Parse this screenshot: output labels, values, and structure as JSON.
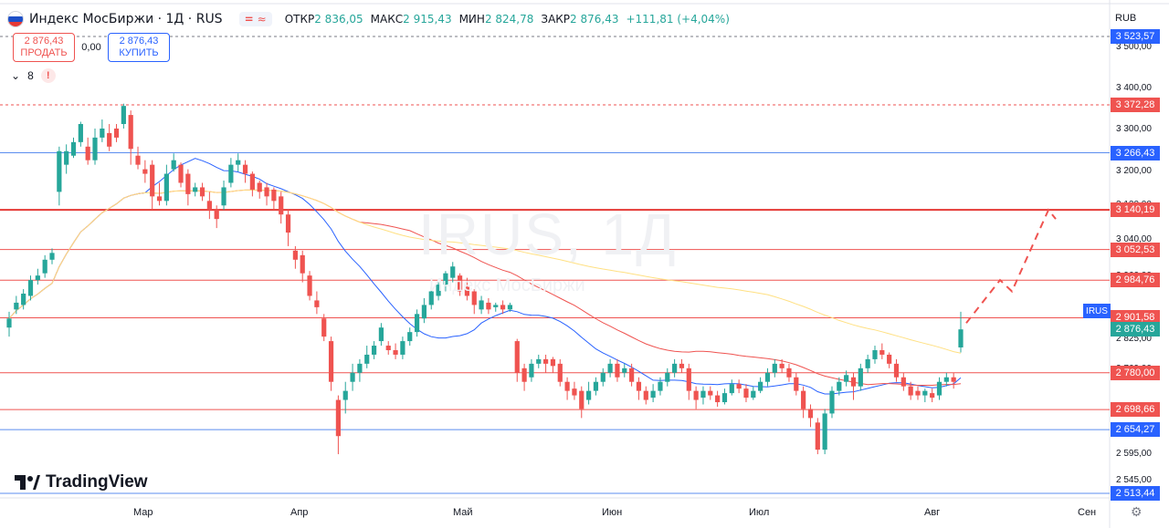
{
  "header": {
    "title": "Индекс МосБиржи · 1Д · RUS",
    "pill_icon_1": "=",
    "pill_icon_2": "≈",
    "ohlc": [
      {
        "k": "ОТКР",
        "v": "2 836,05"
      },
      {
        "k": "МАКС",
        "v": "2 915,43"
      },
      {
        "k": "МИН",
        "v": "2 824,78"
      },
      {
        "k": "ЗАКР",
        "v": "2 876,43"
      },
      {
        "k": "",
        "v": "+111,81 (+4,04%)"
      }
    ]
  },
  "trade": {
    "sell_price": "2 876,43",
    "sell_label": "ПРОДАТЬ",
    "spread": "0,00",
    "buy_price": "2 876,43",
    "buy_label": "КУПИТЬ"
  },
  "indicators": {
    "count": "8",
    "alert": "!"
  },
  "currency": "RUB",
  "watermark": {
    "symbol": "IRUS, 1Д",
    "name": "Индекс МосБиржи"
  },
  "brand": "TradingView",
  "symbol_tag": "IRUS",
  "colors": {
    "up": "#26a69a",
    "down": "#ef5350",
    "ma_blue": "#2962ff",
    "ma_red": "#ef5350",
    "ma_yellow": "#ffe082",
    "level_blue": "#5b8def",
    "level_red": "#ef5350"
  },
  "chart_data": {
    "type": "candlestick",
    "y_ticks": [
      "3 500,00",
      "3 400,00",
      "3 300,00",
      "3 200,00",
      "3 120,00",
      "3 040,00",
      "2 960,00",
      "2 825,00",
      "2 769,00",
      "2 595,00",
      "2 545,00"
    ],
    "x_ticks": [
      "Мар",
      "Апр",
      "Май",
      "Июн",
      "Июл",
      "Авг",
      "Сен"
    ],
    "price_labels": [
      {
        "value": "3 523,57",
        "color": "#2962ff"
      },
      {
        "value": "3 372,28",
        "color": "#ef5350"
      },
      {
        "value": "3 266,43",
        "color": "#2962ff"
      },
      {
        "value": "3 140,19",
        "color": "#ef5350"
      },
      {
        "value": "3 052,53",
        "color": "#ef5350"
      },
      {
        "value": "2 984,76",
        "color": "#ef5350"
      },
      {
        "value": "2 901,58",
        "color": "#ef5350"
      },
      {
        "value": "2 876,43",
        "color": "#26a69a"
      },
      {
        "value": "2 780,00",
        "color": "#ef5350"
      },
      {
        "value": "2 698,66",
        "color": "#ef5350"
      },
      {
        "value": "2 654,27",
        "color": "#2962ff"
      },
      {
        "value": "2 513,44",
        "color": "#2962ff"
      }
    ],
    "levels": [
      {
        "value": 3523.57,
        "style": "dashed",
        "color": "#787b86"
      },
      {
        "value": 3372.28,
        "style": "dashed",
        "color": "#ef5350"
      },
      {
        "value": 3266.43,
        "style": "solid",
        "color": "#5b8def"
      },
      {
        "value": 3140.19,
        "style": "solid-thick",
        "color": "#e53935"
      },
      {
        "value": 3052.53,
        "style": "solid",
        "color": "#ef5350"
      },
      {
        "value": 2984.76,
        "style": "solid",
        "color": "#ef5350"
      },
      {
        "value": 2901.58,
        "style": "solid",
        "color": "#ef5350"
      },
      {
        "value": 2780.0,
        "style": "solid",
        "color": "#ef5350"
      },
      {
        "value": 2698.66,
        "style": "solid",
        "color": "#ef5350"
      },
      {
        "value": 2654.27,
        "style": "solid",
        "color": "#5b8def"
      },
      {
        "value": 2513.44,
        "style": "solid",
        "color": "#5b8def"
      }
    ],
    "candles": [
      [
        2880,
        2900,
        2860,
        2915
      ],
      [
        2920,
        2935,
        2910,
        2950
      ],
      [
        2930,
        2955,
        2920,
        2965
      ],
      [
        2950,
        2985,
        2940,
        2995
      ],
      [
        2985,
        2995,
        2975,
        3010
      ],
      [
        3000,
        3030,
        2990,
        3040
      ],
      [
        3030,
        3045,
        3020,
        3055
      ],
      [
        3180,
        3270,
        3150,
        3280
      ],
      [
        3240,
        3270,
        3220,
        3285
      ],
      [
        3260,
        3290,
        3255,
        3300
      ],
      [
        3290,
        3330,
        3280,
        3335
      ],
      [
        3280,
        3250,
        3240,
        3300
      ],
      [
        3250,
        3300,
        3240,
        3320
      ],
      [
        3300,
        3320,
        3290,
        3340
      ],
      [
        3310,
        3280,
        3270,
        3330
      ],
      [
        3320,
        3300,
        3290,
        3330
      ],
      [
        3330,
        3370,
        3320,
        3375
      ],
      [
        3350,
        3275,
        3240,
        3360
      ],
      [
        3260,
        3240,
        3230,
        3280
      ],
      [
        3230,
        3220,
        3200,
        3250
      ],
      [
        3240,
        3170,
        3140,
        3250
      ],
      [
        3170,
        3160,
        3150,
        3200
      ],
      [
        3160,
        3220,
        3150,
        3240
      ],
      [
        3230,
        3250,
        3225,
        3265
      ],
      [
        3240,
        3200,
        3190,
        3245
      ],
      [
        3220,
        3175,
        3150,
        3230
      ],
      [
        3180,
        3190,
        3170,
        3200
      ],
      [
        3190,
        3170,
        3160,
        3200
      ],
      [
        3160,
        3140,
        3120,
        3180
      ],
      [
        3140,
        3120,
        3100,
        3150
      ],
      [
        3150,
        3190,
        3140,
        3205
      ],
      [
        3200,
        3240,
        3190,
        3255
      ],
      [
        3240,
        3250,
        3225,
        3265
      ],
      [
        3240,
        3220,
        3200,
        3250
      ],
      [
        3220,
        3185,
        3170,
        3225
      ],
      [
        3200,
        3180,
        3165,
        3205
      ],
      [
        3190,
        3170,
        3150,
        3200
      ],
      [
        3185,
        3160,
        3140,
        3190
      ],
      [
        3170,
        3130,
        3110,
        3180
      ],
      [
        3130,
        3090,
        3060,
        3140
      ],
      [
        3050,
        3030,
        3010,
        3060
      ],
      [
        3040,
        3000,
        2980,
        3050
      ],
      [
        2995,
        2950,
        2940,
        3005
      ],
      [
        2940,
        2925,
        2910,
        2960
      ],
      [
        2900,
        2860,
        2850,
        2910
      ],
      [
        2850,
        2760,
        2740,
        2860
      ],
      [
        2720,
        2640,
        2600,
        2730
      ],
      [
        2720,
        2740,
        2690,
        2760
      ],
      [
        2760,
        2780,
        2740,
        2800
      ],
      [
        2780,
        2800,
        2760,
        2810
      ],
      [
        2800,
        2820,
        2790,
        2840
      ],
      [
        2820,
        2840,
        2810,
        2850
      ],
      [
        2850,
        2880,
        2840,
        2890
      ],
      [
        2840,
        2830,
        2820,
        2850
      ],
      [
        2830,
        2820,
        2810,
        2845
      ],
      [
        2820,
        2850,
        2810,
        2860
      ],
      [
        2850,
        2870,
        2840,
        2880
      ],
      [
        2870,
        2910,
        2860,
        2920
      ],
      [
        2900,
        2930,
        2890,
        2945
      ],
      [
        2930,
        2960,
        2920,
        2970
      ],
      [
        2950,
        2975,
        2940,
        2980
      ],
      [
        2975,
        3000,
        2960,
        3005
      ],
      [
        2990,
        3015,
        2980,
        3025
      ],
      [
        2995,
        2960,
        2950,
        3000
      ],
      [
        2970,
        2950,
        2940,
        2990
      ],
      [
        2960,
        2930,
        2910,
        2965
      ],
      [
        2920,
        2940,
        2910,
        2950
      ],
      [
        2935,
        2920,
        2910,
        2945
      ],
      [
        2925,
        2930,
        2915,
        2935
      ],
      [
        2930,
        2920,
        2910,
        2940
      ],
      [
        2920,
        2930,
        2915,
        2935
      ],
      [
        2850,
        2780,
        2760,
        2855
      ],
      [
        2790,
        2760,
        2740,
        2800
      ],
      [
        2770,
        2800,
        2760,
        2810
      ],
      [
        2800,
        2810,
        2790,
        2820
      ],
      [
        2810,
        2800,
        2780,
        2820
      ],
      [
        2810,
        2795,
        2780,
        2815
      ],
      [
        2800,
        2760,
        2750,
        2810
      ],
      [
        2760,
        2740,
        2720,
        2770
      ],
      [
        2745,
        2730,
        2720,
        2760
      ],
      [
        2740,
        2700,
        2680,
        2750
      ],
      [
        2720,
        2740,
        2710,
        2760
      ],
      [
        2740,
        2760,
        2730,
        2770
      ],
      [
        2760,
        2780,
        2750,
        2790
      ],
      [
        2780,
        2800,
        2770,
        2810
      ],
      [
        2800,
        2770,
        2760,
        2810
      ],
      [
        2780,
        2790,
        2770,
        2800
      ],
      [
        2790,
        2760,
        2750,
        2800
      ],
      [
        2760,
        2740,
        2720,
        2770
      ],
      [
        2740,
        2720,
        2710,
        2750
      ],
      [
        2725,
        2740,
        2715,
        2755
      ],
      [
        2740,
        2760,
        2730,
        2770
      ],
      [
        2760,
        2780,
        2750,
        2790
      ],
      [
        2780,
        2800,
        2770,
        2810
      ],
      [
        2800,
        2790,
        2780,
        2810
      ],
      [
        2790,
        2740,
        2720,
        2800
      ],
      [
        2740,
        2720,
        2700,
        2750
      ],
      [
        2725,
        2740,
        2710,
        2750
      ],
      [
        2740,
        2730,
        2720,
        2750
      ],
      [
        2730,
        2715,
        2705,
        2740
      ],
      [
        2715,
        2735,
        2710,
        2745
      ],
      [
        2735,
        2755,
        2730,
        2765
      ],
      [
        2755,
        2745,
        2735,
        2765
      ],
      [
        2745,
        2725,
        2715,
        2755
      ],
      [
        2725,
        2740,
        2720,
        2750
      ],
      [
        2740,
        2760,
        2735,
        2770
      ],
      [
        2760,
        2780,
        2750,
        2790
      ],
      [
        2780,
        2800,
        2770,
        2810
      ],
      [
        2800,
        2790,
        2780,
        2810
      ],
      [
        2790,
        2770,
        2760,
        2800
      ],
      [
        2770,
        2740,
        2730,
        2780
      ],
      [
        2740,
        2700,
        2680,
        2750
      ],
      [
        2700,
        2680,
        2660,
        2710
      ],
      [
        2670,
        2610,
        2600,
        2680
      ],
      [
        2610,
        2690,
        2600,
        2700
      ],
      [
        2690,
        2740,
        2680,
        2750
      ],
      [
        2740,
        2760,
        2730,
        2770
      ],
      [
        2760,
        2775,
        2750,
        2785
      ],
      [
        2770,
        2750,
        2720,
        2780
      ],
      [
        2750,
        2790,
        2740,
        2800
      ],
      [
        2790,
        2810,
        2780,
        2820
      ],
      [
        2810,
        2830,
        2800,
        2840
      ],
      [
        2830,
        2820,
        2810,
        2845
      ],
      [
        2820,
        2800,
        2790,
        2825
      ],
      [
        2800,
        2770,
        2760,
        2810
      ],
      [
        2770,
        2750,
        2740,
        2780
      ],
      [
        2750,
        2730,
        2720,
        2760
      ],
      [
        2740,
        2730,
        2720,
        2750
      ],
      [
        2730,
        2740,
        2715,
        2745
      ],
      [
        2735,
        2725,
        2715,
        2745
      ],
      [
        2730,
        2760,
        2720,
        2770
      ],
      [
        2760,
        2770,
        2750,
        2780
      ],
      [
        2770,
        2760,
        2745,
        2780
      ],
      [
        2836,
        2876,
        2825,
        2915
      ]
    ],
    "forecast_path": [
      [
        2890,
        0
      ],
      [
        2985,
        1
      ],
      [
        2960,
        2
      ],
      [
        3140,
        3
      ],
      [
        3120,
        4
      ]
    ]
  }
}
